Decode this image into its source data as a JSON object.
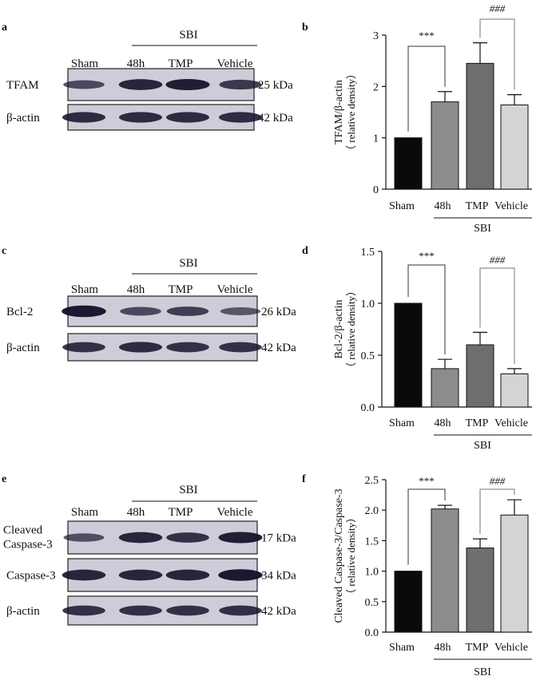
{
  "blots": [
    {
      "letter": "a",
      "group_label": "SBI",
      "lane_labels": [
        "Sham",
        "48h",
        "TMP",
        "Vehicle"
      ],
      "rows": [
        {
          "label": "TFAM",
          "kda": "25 kDa",
          "intensity": [
            0.55,
            0.85,
            0.9,
            0.7
          ]
        },
        {
          "label": "β-actin",
          "kda": "42 kDa",
          "intensity": [
            0.8,
            0.8,
            0.8,
            0.8
          ]
        }
      ]
    },
    {
      "letter": "c",
      "group_label": "SBI",
      "lane_labels": [
        "Sham",
        "48h",
        "TMP",
        "Vehicle"
      ],
      "rows": [
        {
          "label": "Bcl-2",
          "kda": "26 kDa",
          "intensity": [
            0.95,
            0.55,
            0.65,
            0.45
          ]
        },
        {
          "label": "β-actin",
          "kda": "42 kDa",
          "intensity": [
            0.75,
            0.8,
            0.75,
            0.75
          ]
        }
      ]
    },
    {
      "letter": "e",
      "group_label": "SBI",
      "lane_labels": [
        "Sham",
        "48h",
        "TMP",
        "Vehicle"
      ],
      "rows": [
        {
          "label": "Cleaved Caspase-3",
          "kda": "17 kDa",
          "intensity": [
            0.5,
            0.85,
            0.75,
            0.9
          ]
        },
        {
          "label": "Caspase-3",
          "kda": "34 kDa",
          "intensity": [
            0.85,
            0.85,
            0.85,
            0.95
          ]
        },
        {
          "label": "β-actin",
          "kda": "42 kDa",
          "intensity": [
            0.75,
            0.75,
            0.75,
            0.75
          ]
        }
      ]
    }
  ],
  "chart_data": [
    {
      "letter": "b",
      "type": "bar",
      "categories": [
        "Sham",
        "48h",
        "TMP",
        "Vehicle"
      ],
      "values": [
        1.0,
        1.7,
        2.45,
        1.64
      ],
      "errors": [
        0,
        0.2,
        0.4,
        0.2
      ],
      "colors": [
        "#0a0a0a",
        "#8c8c8c",
        "#6e6e6e",
        "#d4d4d4"
      ],
      "ylabel_line1": "TFAM/β-actin",
      "ylabel_line2": "（ relative density）",
      "ylim": [
        0,
        3
      ],
      "yticks": [
        0,
        1,
        2,
        3
      ],
      "ytick_labels": [
        "0",
        "1",
        "2",
        "3"
      ],
      "group_label": "SBI",
      "sig1": "***",
      "sig2": "###"
    },
    {
      "letter": "d",
      "type": "bar",
      "categories": [
        "Sham",
        "48h",
        "TMP",
        "Vehicle"
      ],
      "values": [
        1.0,
        0.37,
        0.6,
        0.32
      ],
      "errors": [
        0,
        0.09,
        0.12,
        0.05
      ],
      "colors": [
        "#0a0a0a",
        "#8c8c8c",
        "#6e6e6e",
        "#d4d4d4"
      ],
      "ylabel_line1": "Bcl-2/β-actin",
      "ylabel_line2": "（ relative density）",
      "ylim": [
        0,
        1.5
      ],
      "yticks": [
        0,
        0.5,
        1.0,
        1.5
      ],
      "ytick_labels": [
        "0.0",
        "0.5",
        "1.0",
        "1.5"
      ],
      "group_label": "SBI",
      "sig1": "***",
      "sig2": "###"
    },
    {
      "letter": "f",
      "type": "bar",
      "categories": [
        "Sham",
        "48h",
        "TMP",
        "Vehicle"
      ],
      "values": [
        1.0,
        2.02,
        1.38,
        1.92
      ],
      "errors": [
        0,
        0.06,
        0.15,
        0.25
      ],
      "colors": [
        "#0a0a0a",
        "#8c8c8c",
        "#6e6e6e",
        "#d4d4d4"
      ],
      "ylabel_line1": "Cleaved Caspase-3/Caspase-3",
      "ylabel_line2": "（ relative density）",
      "ylim": [
        0,
        2.5
      ],
      "yticks": [
        0,
        0.5,
        1.0,
        1.5,
        2.0,
        2.5
      ],
      "ytick_labels": [
        "0.0",
        "0.5",
        "1.0",
        "1.5",
        "2.0",
        "2.5"
      ],
      "group_label": "SBI",
      "sig1": "***",
      "sig2": "###"
    }
  ]
}
